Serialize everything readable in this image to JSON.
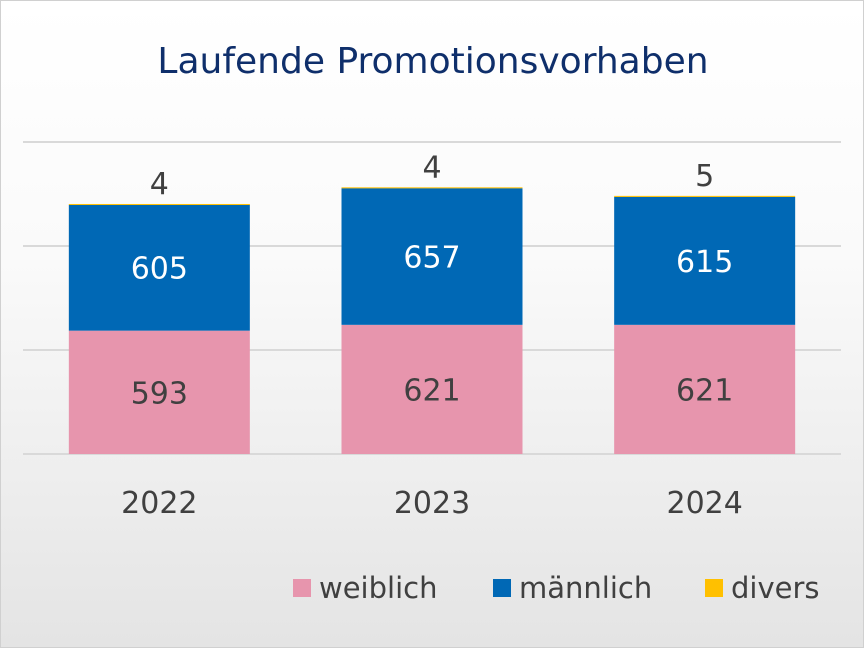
{
  "chart_data": {
    "type": "bar",
    "stacked": true,
    "title": "Laufende Promotionsvorhaben",
    "categories": [
      "2022",
      "2023",
      "2024"
    ],
    "series": [
      {
        "name": "weiblich",
        "values": [
          593,
          621,
          621
        ],
        "color": "#E795AD"
      },
      {
        "name": "männlich",
        "values": [
          605,
          657,
          615
        ],
        "color": "#0068B5"
      },
      {
        "name": "divers",
        "values": [
          4,
          4,
          5
        ],
        "color": "#FFC000"
      }
    ],
    "ylim": [
      0,
      1500
    ],
    "grid": true,
    "legend": "bottom-right",
    "title_color": "#0F2F6B"
  }
}
